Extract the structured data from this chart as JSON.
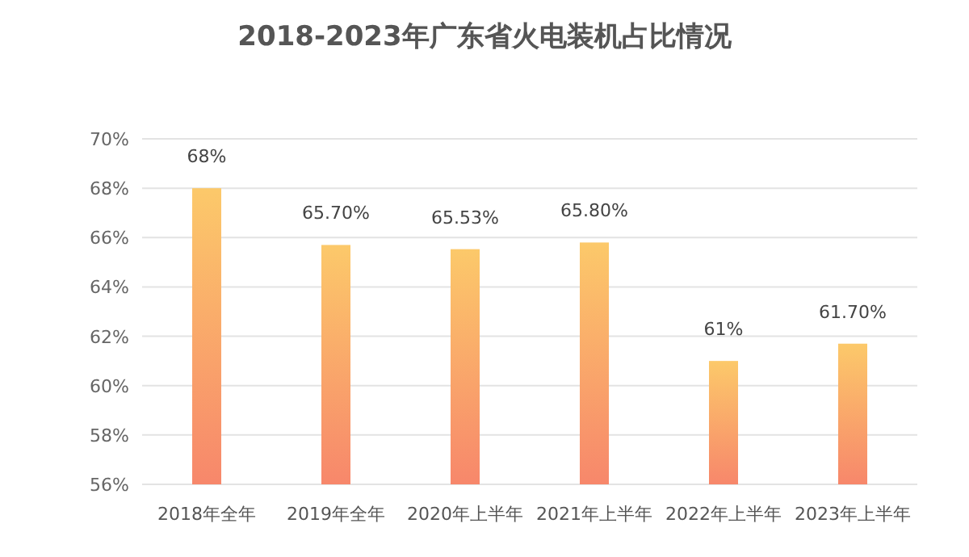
{
  "chart_data": {
    "type": "bar",
    "title": "2018-2023年广东省火电装机占比情况",
    "categories": [
      "2018年全年",
      "2019年全年",
      "2020年上半年",
      "2021年上半年",
      "2022年上半年",
      "2023年上半年"
    ],
    "values": [
      68,
      65.7,
      65.53,
      65.8,
      61,
      61.7
    ],
    "value_labels": [
      "68%",
      "65.70%",
      "65.53%",
      "65.80%",
      "61%",
      "61.70%"
    ],
    "color": "#f7876b",
    "ylim": [
      56,
      70
    ],
    "yticks": [
      {
        "value": 56,
        "label": "56%"
      },
      {
        "value": 58,
        "label": "58%"
      },
      {
        "value": 60,
        "label": "60%"
      },
      {
        "value": 62,
        "label": "62%"
      },
      {
        "value": 64,
        "label": "64%"
      },
      {
        "value": 66,
        "label": "66%"
      },
      {
        "value": 68,
        "label": "68%"
      },
      {
        "value": 70,
        "label": "70%"
      }
    ],
    "grid": "y"
  }
}
